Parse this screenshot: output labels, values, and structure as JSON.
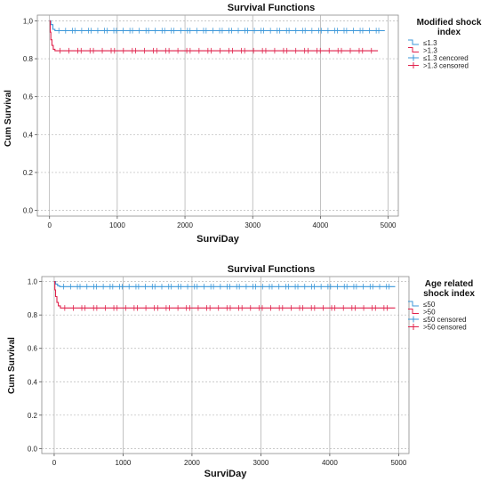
{
  "chart_data": [
    {
      "type": "line",
      "title": "Survival Functions",
      "xlabel": "SurviDay",
      "ylabel": "Cum Survival",
      "xlim": [
        -180,
        5150
      ],
      "ylim": [
        -0.03,
        1.03
      ],
      "x_ticks": [
        0,
        1000,
        2000,
        3000,
        4000,
        5000
      ],
      "y_ticks": [
        0.0,
        0.2,
        0.4,
        0.6,
        0.8,
        1.0
      ],
      "x_tick_labels": [
        "0",
        "1000",
        "2000",
        "3000",
        "4000",
        "5000"
      ],
      "y_tick_labels": [
        "0.0",
        "0.2",
        "0.4",
        "0.6",
        "0.8",
        "1,0"
      ],
      "grid": true,
      "legend_title": "Modified shock index",
      "legend_position": "right",
      "legend": [
        {
          "label": "≤1.3",
          "color": "#3b97d9",
          "kind": "step"
        },
        {
          "label": ">1.3",
          "color": "#e0214b",
          "kind": "step"
        },
        {
          "label": "≤1.3 cencored",
          "color": "#3b97d9",
          "kind": "censor"
        },
        {
          "label": ">1.3 censored",
          "color": "#e0214b",
          "kind": "censor"
        }
      ],
      "series": [
        {
          "color": "#3b97d9",
          "steps": [
            [
              0,
              1.0
            ],
            [
              20,
              0.98
            ],
            [
              50,
              0.955
            ],
            [
              80,
              0.948
            ],
            [
              4950,
              0.948
            ]
          ],
          "censor_range": [
            130,
            4920
          ],
          "censor_count": 62
        },
        {
          "color": "#e0214b",
          "steps": [
            [
              0,
              1.0
            ],
            [
              10,
              0.94
            ],
            [
              20,
              0.9
            ],
            [
              35,
              0.87
            ],
            [
              55,
              0.85
            ],
            [
              80,
              0.842
            ],
            [
              4850,
              0.842
            ]
          ],
          "censor_range": [
            130,
            4800
          ],
          "censor_count": 46
        }
      ]
    },
    {
      "type": "line",
      "title": "Survival Functions",
      "xlabel": "SurviDay",
      "ylabel": "Cum Survival",
      "xlim": [
        -180,
        5150
      ],
      "ylim": [
        -0.03,
        1.03
      ],
      "x_ticks": [
        0,
        1000,
        2000,
        3000,
        4000,
        5000
      ],
      "y_ticks": [
        0.0,
        0.2,
        0.4,
        0.6,
        0.8,
        1.0
      ],
      "x_tick_labels": [
        "0",
        "1000",
        "2000",
        "3000",
        "4000",
        "5000"
      ],
      "y_tick_labels": [
        "0.0",
        "0.2",
        "0.4",
        "0.6",
        "0.8",
        "1.0"
      ],
      "grid": true,
      "legend_title": "Age related shock index",
      "legend_position": "right",
      "legend": [
        {
          "label": "≤50",
          "color": "#3b97d9",
          "kind": "step"
        },
        {
          "label": ">50",
          "color": "#e0214b",
          "kind": "step"
        },
        {
          "label": "≤50 censored",
          "color": "#3b97d9",
          "kind": "censor"
        },
        {
          "label": ">50 censored",
          "color": "#e0214b",
          "kind": "censor"
        }
      ],
      "series": [
        {
          "color": "#3b97d9",
          "steps": [
            [
              0,
              1.0
            ],
            [
              20,
              0.985
            ],
            [
              50,
              0.975
            ],
            [
              80,
              0.97
            ],
            [
              4950,
              0.97
            ]
          ],
          "censor_range": [
            130,
            4920
          ],
          "censor_count": 62
        },
        {
          "color": "#e0214b",
          "steps": [
            [
              0,
              1.0
            ],
            [
              10,
              0.95
            ],
            [
              20,
              0.91
            ],
            [
              40,
              0.875
            ],
            [
              60,
              0.855
            ],
            [
              90,
              0.842
            ],
            [
              4950,
              0.842
            ]
          ],
          "censor_range": [
            130,
            4920
          ],
          "censor_count": 50
        }
      ]
    }
  ]
}
